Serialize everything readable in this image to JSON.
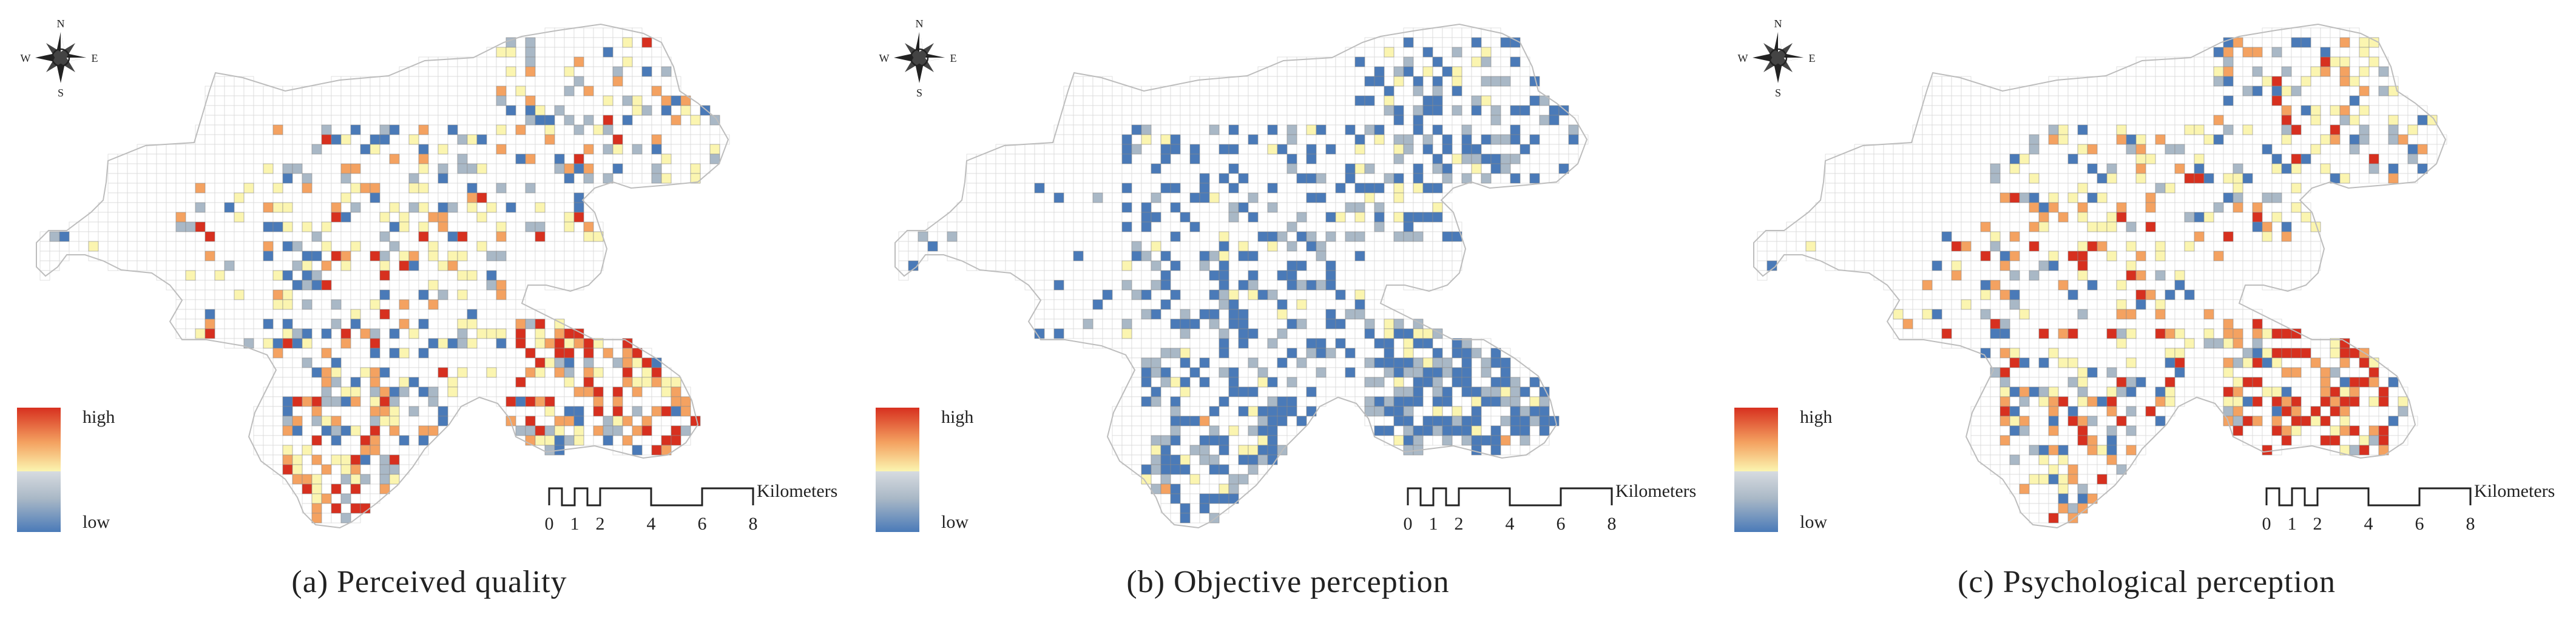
{
  "panels": [
    {
      "id": "a",
      "caption": "(a) Perceived quality",
      "mode": "quality"
    },
    {
      "id": "b",
      "caption": "(b) Objective perception",
      "mode": "objective"
    },
    {
      "id": "c",
      "caption": "(c) Psychological perception",
      "mode": "psych"
    }
  ],
  "legend": {
    "high": "high",
    "low": "low"
  },
  "scale_bar": {
    "ticks": [
      "0",
      "1",
      "2",
      "4",
      "6",
      "8"
    ],
    "unit": "Kilometers"
  },
  "compass": {
    "n": "N",
    "s": "S",
    "e": "E",
    "w": "W"
  },
  "colors": {
    "high": "#d7301f",
    "mid_high": "#f4a261",
    "mid": "#fbf5b0",
    "mid_low": "#a9b8c6",
    "low": "#4a7ab8",
    "grid": "#d9d9d9",
    "outline": "#bdbdbd"
  }
}
